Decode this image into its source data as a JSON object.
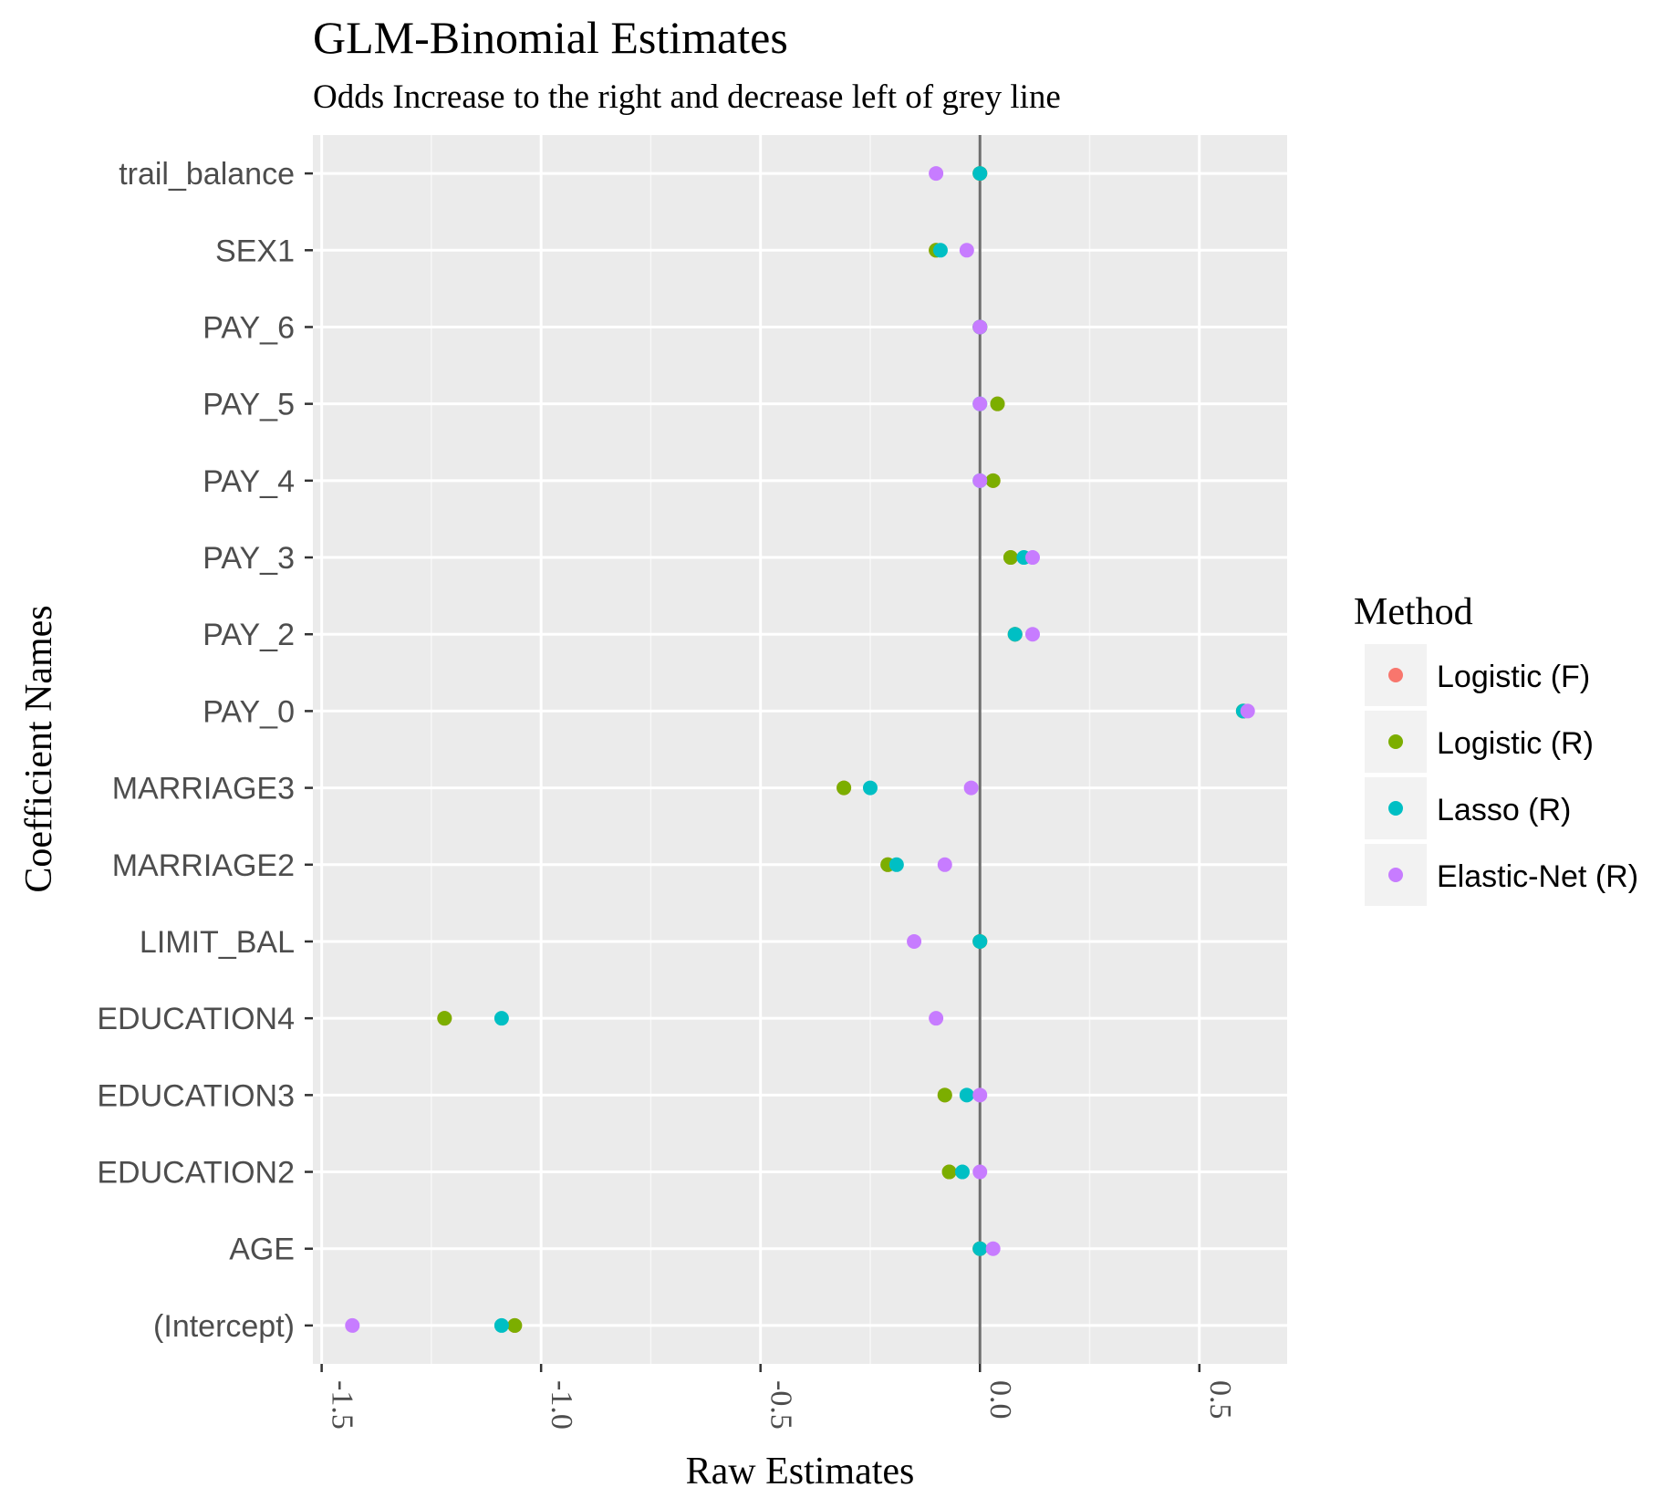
{
  "chart_data": {
    "type": "scatter",
    "title": "GLM-Binomial Estimates",
    "subtitle": "Odds Increase to the right and decrease left of grey line",
    "xlabel": "Raw Estimates",
    "ylabel": "Coefficient Names",
    "xlim": [
      -1.52,
      0.7
    ],
    "x_ticks": [
      -1.5,
      -1.0,
      -0.5,
      0.0,
      0.5
    ],
    "x_tick_labels": [
      "-1.5",
      "-1.0",
      "-0.5",
      "0.0",
      "0.5"
    ],
    "reference_line": 0.0,
    "grid": true,
    "legend": {
      "title": "Method",
      "position": "right"
    },
    "categories": [
      "(Intercept)",
      "AGE",
      "EDUCATION2",
      "EDUCATION3",
      "EDUCATION4",
      "LIMIT_BAL",
      "MARRIAGE2",
      "MARRIAGE3",
      "PAY_0",
      "PAY_2",
      "PAY_3",
      "PAY_4",
      "PAY_5",
      "PAY_6",
      "SEX1",
      "trail_balance"
    ],
    "series": [
      {
        "name": "Logistic (F)",
        "color": "#F8766D",
        "values": [
          -1.06,
          0.0,
          -0.07,
          -0.08,
          -1.22,
          0.0,
          -0.21,
          -0.31,
          0.6,
          0.08,
          0.07,
          0.03,
          0.04,
          0.0,
          -0.1,
          0.0
        ]
      },
      {
        "name": "Logistic (R)",
        "color": "#7CAE00",
        "values": [
          -1.06,
          0.0,
          -0.07,
          -0.08,
          -1.22,
          0.0,
          -0.21,
          -0.31,
          0.6,
          0.08,
          0.07,
          0.03,
          0.04,
          0.0,
          -0.1,
          0.0
        ]
      },
      {
        "name": "Lasso (R)",
        "color": "#00BFC4",
        "values": [
          -1.09,
          0.0,
          -0.04,
          -0.03,
          -1.09,
          0.0,
          -0.19,
          -0.25,
          0.6,
          0.08,
          0.1,
          0.0,
          0.0,
          0.0,
          -0.09,
          0.0
        ]
      },
      {
        "name": "Elastic-Net (R)",
        "color": "#C77CFF",
        "values": [
          -1.43,
          0.03,
          0.0,
          0.0,
          -0.1,
          -0.15,
          -0.08,
          -0.02,
          0.61,
          0.12,
          0.12,
          0.0,
          0.0,
          0.0,
          -0.03,
          -0.1
        ]
      }
    ]
  }
}
